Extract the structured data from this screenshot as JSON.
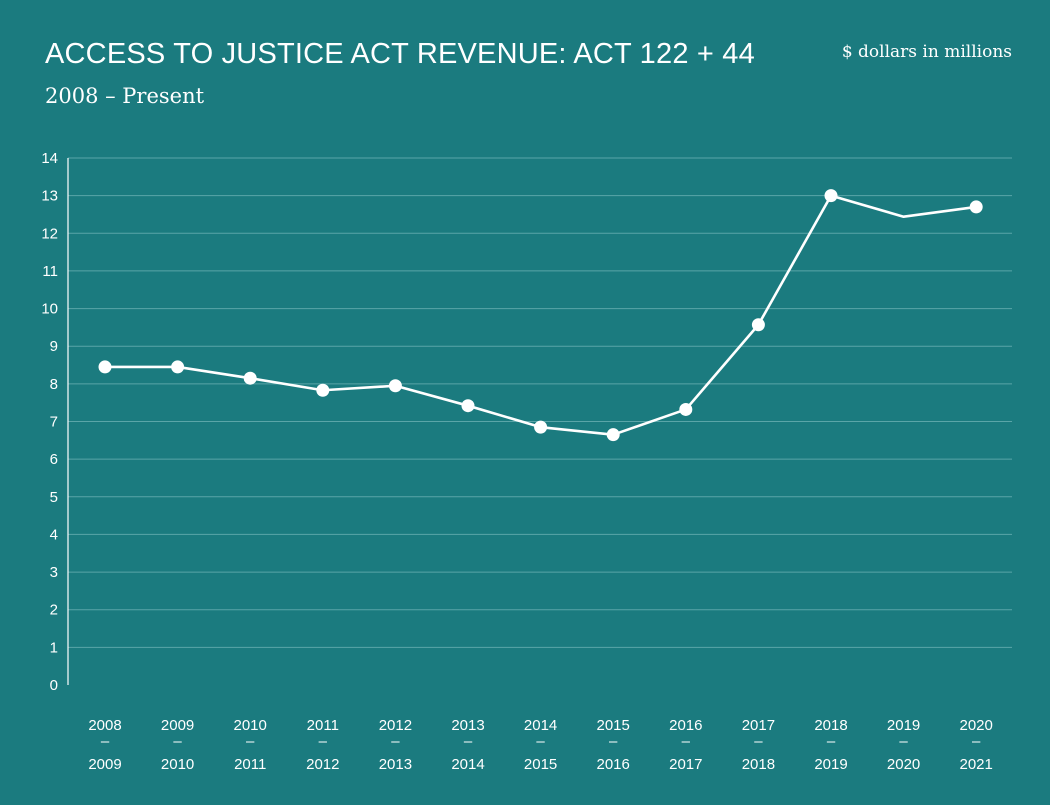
{
  "header": {
    "title": "ACCESS TO JUSTICE ACT REVENUE: ACT 122 + 44",
    "subtitle": "2008 – Present",
    "units_note": "$ dollars in millions"
  },
  "colors": {
    "background": "#1b7b7f",
    "line": "#ffffff",
    "grid": "#5aa5a8"
  },
  "chart_data": {
    "type": "line",
    "title": "ACCESS TO JUSTICE ACT REVENUE: ACT 122 + 44",
    "subtitle": "2008 – Present",
    "ylabel": "$ dollars in millions",
    "ylim": [
      0,
      14
    ],
    "yticks": [
      "0",
      "1",
      "2",
      "3",
      "4",
      "5",
      "6",
      "7",
      "8",
      "9",
      "10",
      "11",
      "12",
      "13",
      "14"
    ],
    "grid": true,
    "categories": [
      {
        "top": "2008",
        "dash": "–",
        "bottom": "2009"
      },
      {
        "top": "2009",
        "dash": "–",
        "bottom": "2010"
      },
      {
        "top": "2010",
        "dash": "–",
        "bottom": "2011"
      },
      {
        "top": "2011",
        "dash": "–",
        "bottom": "2012"
      },
      {
        "top": "2012",
        "dash": "–",
        "bottom": "2013"
      },
      {
        "top": "2013",
        "dash": "–",
        "bottom": "2014"
      },
      {
        "top": "2014",
        "dash": "–",
        "bottom": "2015"
      },
      {
        "top": "2015",
        "dash": "–",
        "bottom": "2016"
      },
      {
        "top": "2016",
        "dash": "–",
        "bottom": "2017"
      },
      {
        "top": "2017",
        "dash": "–",
        "bottom": "2018"
      },
      {
        "top": "2018",
        "dash": "–",
        "bottom": "2019"
      },
      {
        "top": "2019",
        "dash": "–",
        "bottom": "2020"
      },
      {
        "top": "2020",
        "dash": "–",
        "bottom": "2021"
      }
    ],
    "values": [
      8.45,
      8.45,
      8.15,
      7.83,
      7.95,
      7.42,
      6.85,
      6.65,
      7.32,
      9.57,
      13.0,
      12.44,
      12.7
    ],
    "markers": [
      true,
      true,
      true,
      true,
      true,
      true,
      true,
      true,
      true,
      true,
      true,
      false,
      true
    ]
  }
}
